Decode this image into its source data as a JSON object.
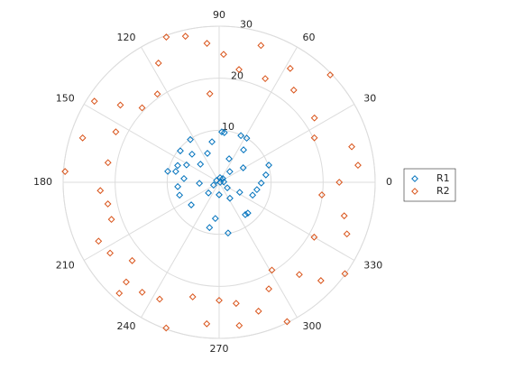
{
  "chart_data": {
    "type": "polar-scatter",
    "rlim": [
      0,
      30
    ],
    "rticks": [
      10,
      20,
      30
    ],
    "thetaticks": [
      0,
      30,
      60,
      90,
      120,
      150,
      180,
      210,
      240,
      270,
      300,
      330
    ],
    "grid": true,
    "legend": "east",
    "series": [
      {
        "name": "R1",
        "color": "#0072BD",
        "theta": [
          87,
          65,
          58,
          84,
          100,
          124,
          141,
          112,
          53,
          134,
          158,
          168,
          166,
          152,
          136,
          67,
          19,
          31,
          9,
          45,
          79,
          45,
          146,
          0,
          207,
          174,
          183,
          186,
          225,
          326,
          359,
          349,
          339,
          304,
          334,
          270,
          219,
          198,
          313,
          309,
          264,
          258,
          280,
          5
        ],
        "r": [
          9.7,
          9.9,
          10.0,
          9.6,
          7.9,
          9.9,
          9.6,
          6.0,
          7.8,
          7.5,
          8.6,
          10.1,
          8.6,
          7.1,
          5.0,
          4.9,
          10.1,
          5.4,
          9.1,
          2.9,
          0.9,
          1.0,
          0.6,
          0.2,
          1.2,
          6.8,
          3.8,
          8.0,
          2.9,
          1.9,
          8.1,
          7.4,
          6.9,
          3.7,
          4.4,
          2.4,
          6.9,
          8.0,
          8.1,
          8.0,
          7.0,
          8.9,
          9.9,
          0.9
        ]
      },
      {
        "name": "R2",
        "color": "#D95319",
        "theta": [
          110,
          103,
          95,
          88,
          73,
          58,
          44,
          117,
          80,
          66,
          51,
          147,
          142,
          136,
          125,
          96,
          162,
          154,
          34,
          25,
          15,
          170,
          176,
          7,
          184,
          191,
          199,
          206,
          0,
          353,
          345,
          330,
          338,
          213,
          222,
          227,
          301,
          311,
          316,
          324,
          228,
          235,
          243,
          257,
          270,
          278,
          295,
          287,
          296,
          250,
          265,
          278
        ],
        "r": [
          29.7,
          28.8,
          26.8,
          24.6,
          27.5,
          25.8,
          29.7,
          25.7,
          22.0,
          21.8,
          22.8,
          28.6,
          24.1,
          20.6,
          20.7,
          17.1,
          27.6,
          22.1,
          22.1,
          20.2,
          26.4,
          21.7,
          29.7,
          26.9,
          22.9,
          21.8,
          21.9,
          25.8,
          23.1,
          19.9,
          24.9,
          21.1,
          26.5,
          25.0,
          22.5,
          26.2,
          19.7,
          23.5,
          27.2,
          29.9,
          28.7,
          25.8,
          25.2,
          22.6,
          22.7,
          23.5,
          22.6,
          25.9,
          29.8,
          29.8,
          27.3,
          27.8
        ]
      }
    ]
  }
}
